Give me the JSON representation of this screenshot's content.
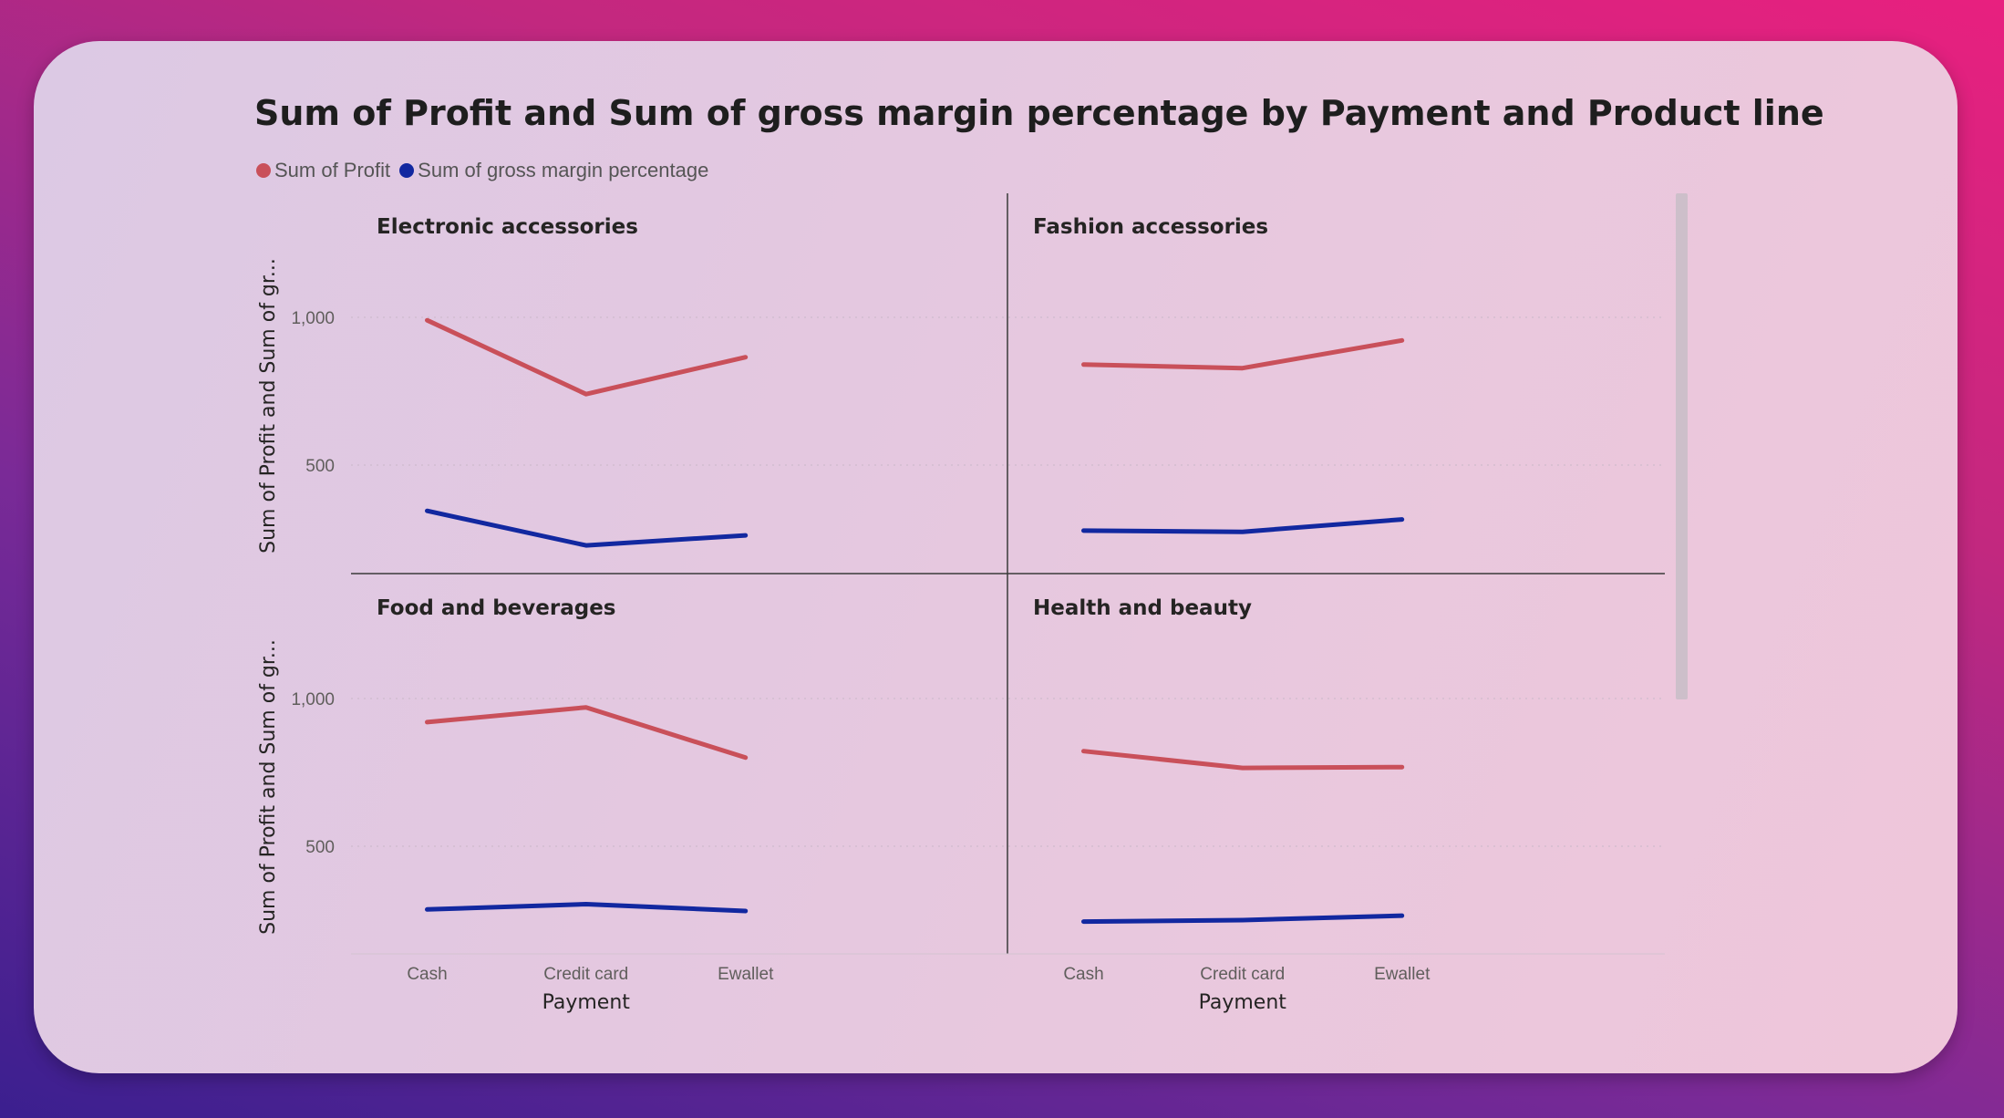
{
  "colors": {
    "profit": "#c9505a",
    "gross_margin": "#1228a0"
  },
  "chart_data": {
    "type": "line",
    "title": "Sum of Profit and Sum of gross margin percentage by Payment and Product line",
    "xlabel": "Payment",
    "ylabel": "Sum of Profit and Sum of gr...",
    "categories": [
      "Cash",
      "Credit card",
      "Ewallet"
    ],
    "yticks": [
      {
        "value": 500,
        "label": "500"
      },
      {
        "value": 1000,
        "label": "1,000"
      }
    ],
    "ylim": [
      130,
      1300
    ],
    "legend": [
      {
        "name": "Sum of Profit",
        "color": "#c9505a"
      },
      {
        "name": "Sum of gross margin percentage",
        "color": "#1228a0"
      }
    ],
    "legend_position": "top-left",
    "grid": true,
    "panels": [
      {
        "name": "Electronic accessories",
        "series": [
          {
            "name": "Sum of Profit",
            "values": [
              990,
              740,
              865
            ]
          },
          {
            "name": "Sum of gross margin percentage",
            "values": [
              345,
              228,
              262
            ]
          }
        ]
      },
      {
        "name": "Fashion accessories",
        "series": [
          {
            "name": "Sum of Profit",
            "values": [
              840,
              828,
              922
            ]
          },
          {
            "name": "Sum of gross margin percentage",
            "values": [
              278,
              274,
              316
            ]
          }
        ]
      },
      {
        "name": "Food and beverages",
        "series": [
          {
            "name": "Sum of Profit",
            "values": [
              920,
              970,
              800
            ]
          },
          {
            "name": "Sum of gross margin percentage",
            "values": [
              286,
              304,
              281
            ]
          }
        ]
      },
      {
        "name": "Health and beauty",
        "series": [
          {
            "name": "Sum of Profit",
            "values": [
              822,
              765,
              768
            ]
          },
          {
            "name": "Sum of gross margin percentage",
            "values": [
              245,
              250,
              265
            ]
          }
        ]
      }
    ]
  }
}
